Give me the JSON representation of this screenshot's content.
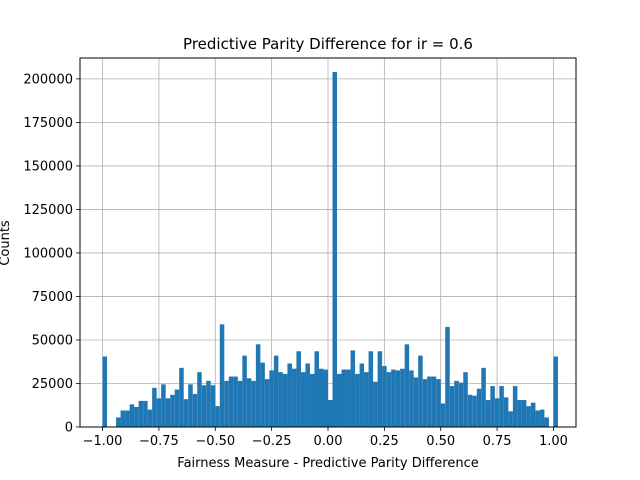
{
  "chart_data": {
    "type": "bar",
    "title": "Predictive Parity Difference for ir = 0.6",
    "xlabel": "Fairness Measure - Predictive Parity Difference",
    "ylabel": "Counts",
    "xlim": [
      -1.1,
      1.1
    ],
    "ylim": [
      0,
      212000
    ],
    "grid": true,
    "bar_color": "#1f77b4",
    "xticks": [
      -1.0,
      -0.75,
      -0.5,
      -0.25,
      0.0,
      0.25,
      0.5,
      0.75,
      1.0
    ],
    "xtick_labels": [
      "−1.00",
      "−0.75",
      "−0.50",
      "−0.25",
      "0.00",
      "0.25",
      "0.50",
      "0.75",
      "1.00"
    ],
    "yticks": [
      0,
      25000,
      50000,
      75000,
      100000,
      125000,
      150000,
      175000,
      200000
    ],
    "ytick_labels": [
      "0",
      "25000",
      "50000",
      "75000",
      "100000",
      "125000",
      "150000",
      "175000",
      "200000"
    ],
    "bin_start": -1.0,
    "bin_width": 0.02,
    "values": [
      40500,
      0,
      0,
      5500,
      9500,
      9500,
      13000,
      11500,
      15000,
      15000,
      10000,
      22500,
      16500,
      24500,
      16500,
      18500,
      21500,
      34000,
      16000,
      24500,
      19000,
      31500,
      24000,
      26500,
      24000,
      12000,
      59000,
      26500,
      29000,
      29000,
      26500,
      41000,
      28000,
      26500,
      47500,
      37000,
      27500,
      32500,
      41000,
      31500,
      30500,
      36500,
      33500,
      43500,
      31500,
      36500,
      30500,
      43500,
      33500,
      33000,
      15500,
      204000,
      30500,
      33000,
      33000,
      44000,
      30500,
      36500,
      31500,
      43500,
      26000,
      43500,
      35000,
      31500,
      33000,
      32500,
      33500,
      47500,
      32500,
      28500,
      41000,
      27500,
      29000,
      29000,
      27500,
      13500,
      57500,
      23500,
      26500,
      25500,
      31500,
      18500,
      18000,
      22000,
      34000,
      15500,
      23500,
      16500,
      23500,
      17000,
      9000,
      23500,
      15500,
      15500,
      12000,
      14000,
      9500,
      10000,
      5500,
      0,
      40500
    ]
  }
}
